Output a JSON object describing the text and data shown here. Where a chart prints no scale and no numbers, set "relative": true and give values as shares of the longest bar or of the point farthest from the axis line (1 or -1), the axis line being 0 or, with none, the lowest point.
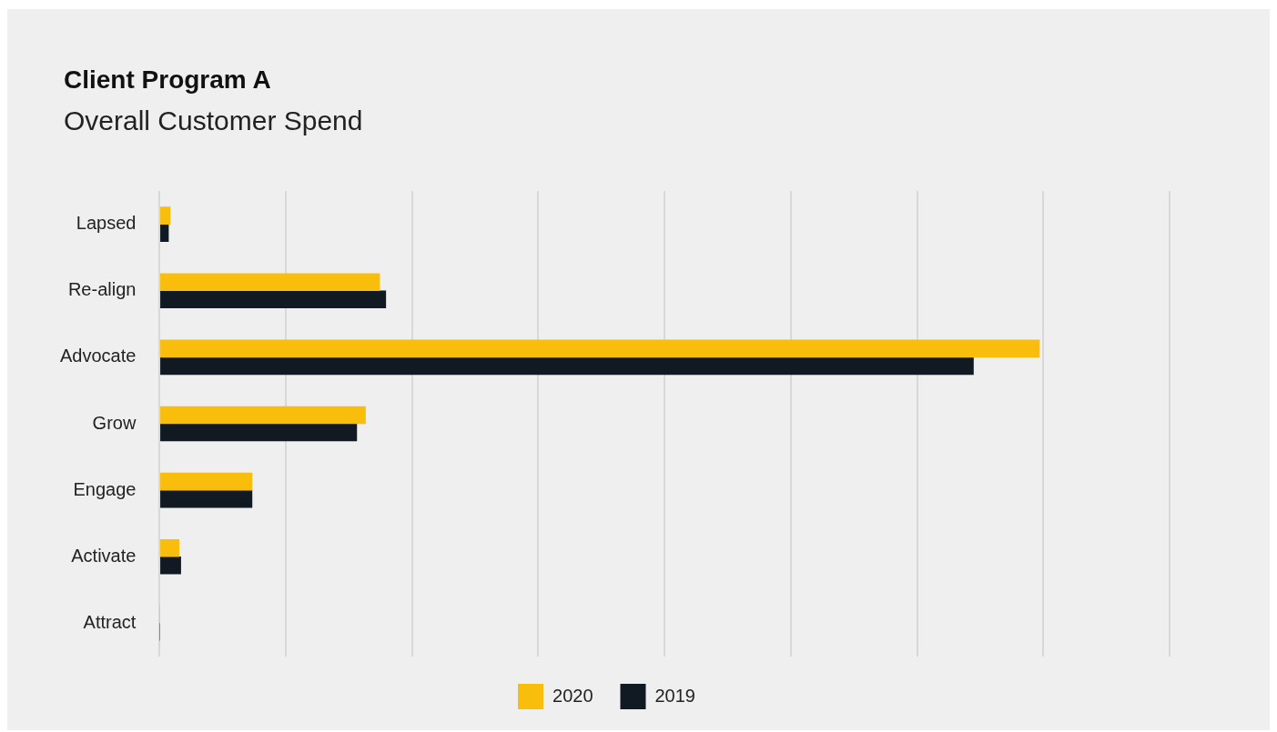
{
  "chart_data": {
    "type": "bar",
    "orientation": "horizontal",
    "relative": true,
    "title": "Client Program A",
    "subtitle": "Overall Customer Spend",
    "categories": [
      "Lapsed",
      "Re-align",
      "Advocate",
      "Grow",
      "Engage",
      "Activate",
      "Attract"
    ],
    "series": [
      {
        "name": "2020",
        "color": "#f9bd0b",
        "values": [
          0.012,
          0.25,
          1,
          0.234,
          0.105,
          0.022,
          0
        ]
      },
      {
        "name": "2019",
        "color": "#111a22",
        "values": [
          0.01,
          0.257,
          0.925,
          0.224,
          0.105,
          0.024,
          0
        ]
      }
    ],
    "grid": "x",
    "legend": "bottom"
  }
}
